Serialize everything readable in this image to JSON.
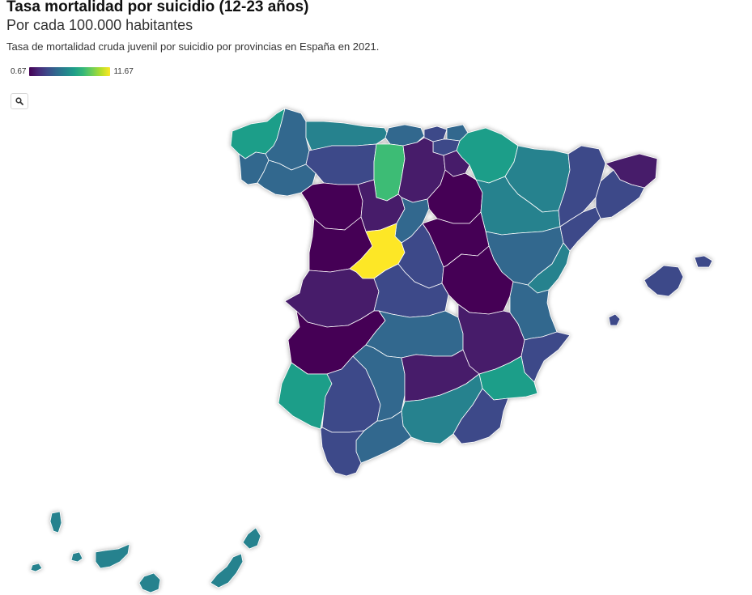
{
  "header": {
    "title": "Tasa mortalidad por suicidio (12-23 años)",
    "subtitle": "Por cada 100.000 habitantes",
    "description": "Tasa de mortalidad cruda juvenil por suicidio por provincias en España en 2021."
  },
  "legend": {
    "min": "0.67",
    "max": "11.67",
    "colormap": "viridis",
    "colors": [
      "#440154",
      "#482878",
      "#3e4989",
      "#31688e",
      "#26828e",
      "#1f9e89",
      "#35b779",
      "#6ece58",
      "#b5de2b",
      "#fde725"
    ]
  },
  "controls": {
    "search_icon": "search-icon"
  },
  "map": {
    "region": "España",
    "year": "2021",
    "colors": {
      "darkest": "#440154",
      "dark_purple": "#471a6b",
      "indigo": "#3e4989",
      "blue": "#31688e",
      "teal": "#26828e",
      "green_teal": "#1f9e89",
      "green": "#3dbc74",
      "yellow": "#fde725"
    }
  }
}
